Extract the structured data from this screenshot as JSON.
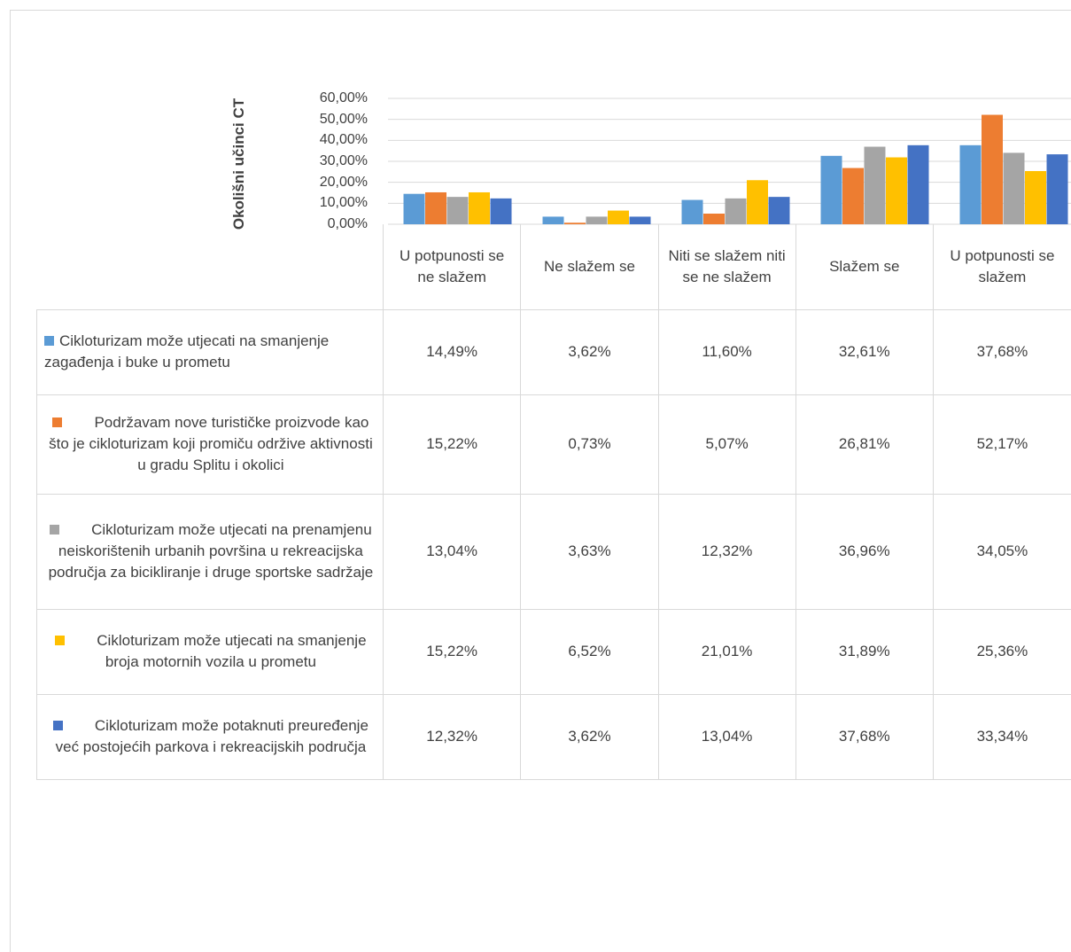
{
  "chart_data": {
    "type": "bar",
    "title": "",
    "ylabel": "Okolišni učinci CT",
    "xlabel": "",
    "ylim": [
      0,
      60
    ],
    "yticks": [
      "0,00%",
      "10,00%",
      "20,00%",
      "30,00%",
      "40,00%",
      "50,00%",
      "60,00%"
    ],
    "grid": true,
    "legend": "data table",
    "categories": [
      "U potpunosti se ne slažem",
      "Ne slažem se",
      "Niti se slažem niti se ne slažem",
      "Slažem se",
      "U potpunosti se slažem"
    ],
    "series": [
      {
        "name": "Cikloturizam može utjecati na smanjenje zagađenja i buke u prometu",
        "color": "#5b9bd5",
        "values": [
          14.49,
          3.62,
          11.6,
          32.61,
          37.68
        ],
        "labels": [
          "14,49%",
          "3,62%",
          "11,60%",
          "32,61%",
          "37,68%"
        ]
      },
      {
        "name": "Podržavam nove turističke proizvode kao što je cikloturizam koji  promiču održive aktivnosti u gradu Splitu i okolici",
        "color": "#ed7d31",
        "values": [
          15.22,
          0.73,
          5.07,
          26.81,
          52.17
        ],
        "labels": [
          "15,22%",
          "0,73%",
          "5,07%",
          "26,81%",
          "52,17%"
        ]
      },
      {
        "name": "Cikloturizam može utjecati na prenamjenu  neiskorištenih  urbanih površina u rekreacijska područja za bicikliranje i druge sportske sadržaje",
        "color": "#a5a5a5",
        "values": [
          13.04,
          3.63,
          12.32,
          36.96,
          34.05
        ],
        "labels": [
          "13,04%",
          "3,63%",
          "12,32%",
          "36,96%",
          "34,05%"
        ]
      },
      {
        "name": "Cikloturizam može utjecati na smanjenje broja motornih vozila u prometu",
        "color": "#ffc000",
        "values": [
          15.22,
          6.52,
          21.01,
          31.89,
          25.36
        ],
        "labels": [
          "15,22%",
          "6,52%",
          "21,01%",
          "31,89%",
          "25,36%"
        ]
      },
      {
        "name": "Cikloturizam može potaknuti preuređenje već postojećih parkova i rekreacijskih područja",
        "color": "#4472c4",
        "values": [
          12.32,
          3.62,
          13.04,
          37.68,
          33.34
        ],
        "labels": [
          "12,32%",
          "3,62%",
          "13,04%",
          "37,68%",
          "33,34%"
        ]
      }
    ]
  }
}
